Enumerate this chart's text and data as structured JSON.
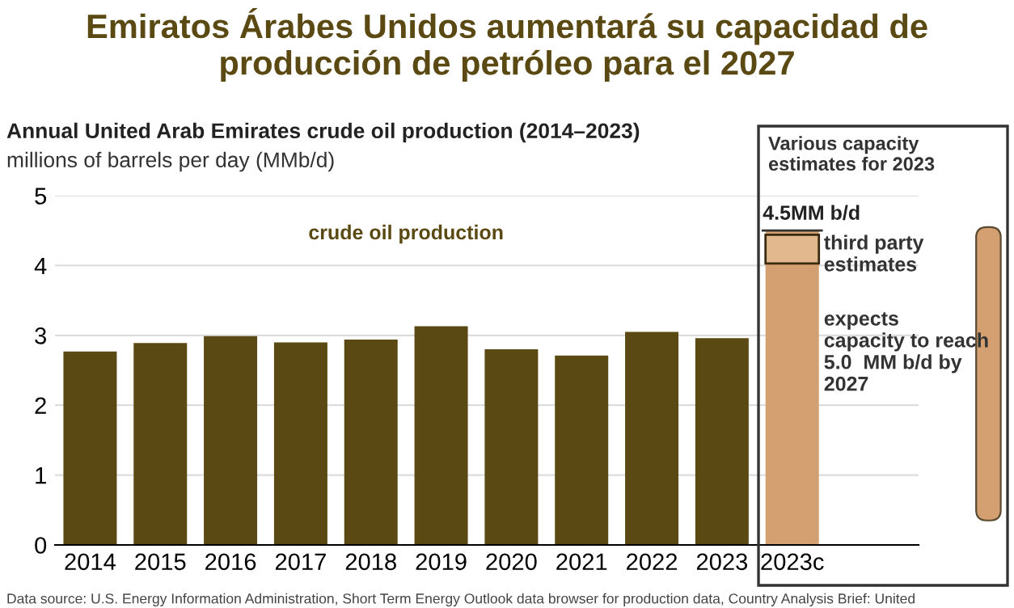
{
  "chart_data": {
    "type": "bar",
    "title": "Emiratos Árabes Unidos aumentará su capacidad de producción de petróleo para el 2027",
    "subtitle": "Annual United Arab Emirates crude oil production (2014–2023)",
    "ylabel": "millions of barrels per day (MMb/d)",
    "categories": [
      "2014",
      "2015",
      "2016",
      "2017",
      "2018",
      "2019",
      "2020",
      "2021",
      "2022",
      "2023",
      "2023c"
    ],
    "series": [
      {
        "name": "crude oil production",
        "color": "#5a4912",
        "values": [
          2.77,
          2.89,
          2.99,
          2.9,
          2.94,
          3.13,
          2.8,
          2.71,
          3.05,
          2.96,
          null
        ]
      },
      {
        "color": "#d4a071",
        "values": [
          null,
          null,
          null,
          null,
          null,
          null,
          null,
          null,
          null,
          null,
          4.5
        ]
      },
      {
        "color": "#e2b88f",
        "base": [
          null,
          null,
          null,
          null,
          null,
          null,
          null,
          null,
          null,
          null,
          4.03
        ],
        "values": [
          null,
          null,
          null,
          null,
          null,
          null,
          null,
          null,
          null,
          null,
          0.41
        ]
      }
    ],
    "ylim": [
      0,
      5
    ],
    "yticks": [
      0,
      1,
      2,
      3,
      4,
      5
    ],
    "grid": "y",
    "annotations": [
      "Various capacity\nestimates for 2023",
      {
        "text": "4.5MM b/d",
        "x": "2023c",
        "y": 4.5
      },
      {
        "text": "third party\nestimates",
        "x": "2023c",
        "y": 4.44
      },
      "expects\ncapacity to reach\n5.0  MM b/d by\n2027",
      "Data source: U.S. Energy Information Administration, Short Term Energy Outlook data browser for production data, Country Analysis Brief: United"
    ]
  }
}
